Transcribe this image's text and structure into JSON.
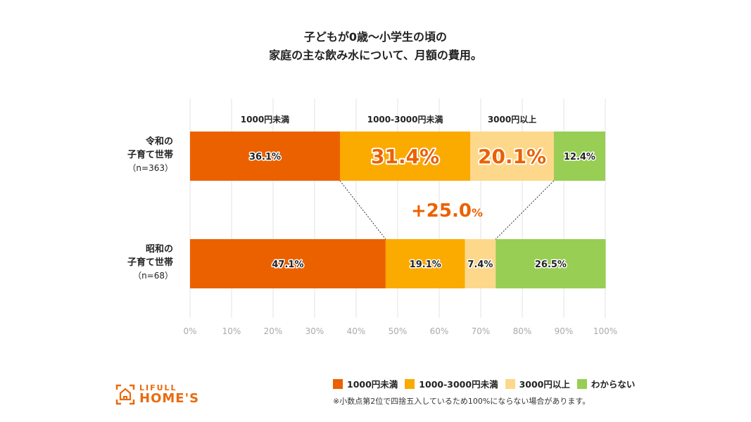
{
  "chart_data": {
    "type": "bar",
    "orientation": "horizontal-stacked-100",
    "title_lines": [
      "子どもが0歳〜小学生の頃の",
      "家庭の主な飲み水について、月額の費用。"
    ],
    "categories": [
      {
        "lines": [
          "令和の",
          "子育て世帯",
          "（n=363）"
        ]
      },
      {
        "lines": [
          "昭和の",
          "子育て世帯",
          "（n=68）"
        ]
      }
    ],
    "series": [
      {
        "name": "1000円未満",
        "color": "#EB6100",
        "values": [
          36.1,
          47.1
        ],
        "labels": [
          "36.1%",
          "47.1%"
        ]
      },
      {
        "name": "1000-3000円未満",
        "color": "#FBAA00",
        "values": [
          31.4,
          19.1
        ],
        "labels": [
          "31.4%",
          "19.1%"
        ]
      },
      {
        "name": "3000円以上",
        "color": "#FDD88A",
        "values": [
          20.1,
          7.4
        ],
        "labels": [
          "20.1%",
          "7.4%"
        ]
      },
      {
        "name": "わからない",
        "color": "#97CE53",
        "values": [
          12.4,
          26.5
        ],
        "labels": [
          "12.4%",
          "26.5%"
        ]
      }
    ],
    "top_labels": [
      "1000円未満",
      "1000-3000円未満",
      "3000円以上"
    ],
    "annotation": {
      "text": "+25.0",
      "unit": "%",
      "color": "#EB6100"
    },
    "x_ticks": [
      "0%",
      "10%",
      "20%",
      "30%",
      "40%",
      "50%",
      "60%",
      "70%",
      "80%",
      "90%",
      "100%"
    ],
    "xlim": [
      0,
      100
    ],
    "grid": true,
    "legend_position": "bottom-right"
  },
  "note": "※小数点第2位で四捨五入しているため100%にならない場合があります。",
  "logo": {
    "line1": "LIFULL",
    "line2": "HOME'S"
  }
}
